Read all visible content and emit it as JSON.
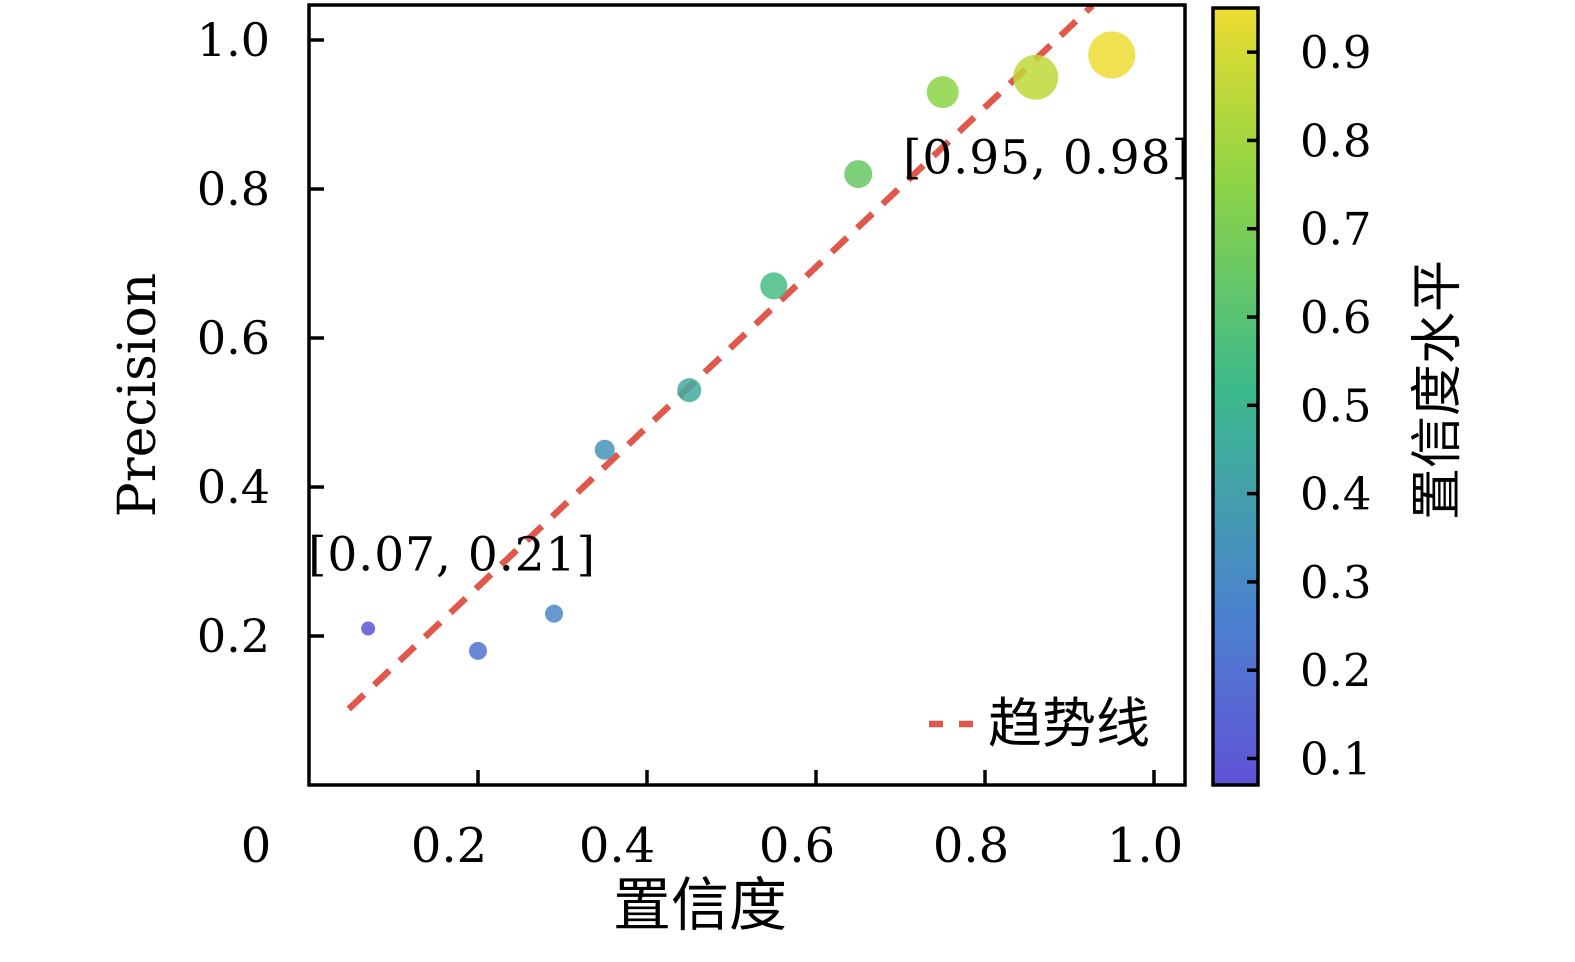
{
  "figure": {
    "background": "#ffffff",
    "text_color": "#000000"
  },
  "chart_data": {
    "type": "scatter",
    "title": "",
    "xlabel": "置信度",
    "ylabel": "Precision",
    "xlim": [
      0,
      1.04
    ],
    "ylim": [
      0,
      1.05
    ],
    "grid": false,
    "x_ticks": [
      {
        "value": 0.0,
        "label": "0"
      },
      {
        "value": 0.2,
        "label": "0.2"
      },
      {
        "value": 0.4,
        "label": "0.4"
      },
      {
        "value": 0.6,
        "label": "0.6"
      },
      {
        "value": 0.8,
        "label": "0.8"
      },
      {
        "value": 1.0,
        "label": "1.0"
      }
    ],
    "y_ticks": [
      {
        "value": 0.2,
        "label": "0.2"
      },
      {
        "value": 0.4,
        "label": "0.4"
      },
      {
        "value": 0.6,
        "label": "0.6"
      },
      {
        "value": 0.8,
        "label": "0.8"
      },
      {
        "value": 1.0,
        "label": "1.0"
      }
    ],
    "points": [
      {
        "x": 0.07,
        "y": 0.21,
        "r": 7,
        "color": "#5e55d6"
      },
      {
        "x": 0.2,
        "y": 0.18,
        "r": 9,
        "color": "#5173d1"
      },
      {
        "x": 0.29,
        "y": 0.23,
        "r": 9,
        "color": "#4988c8"
      },
      {
        "x": 0.35,
        "y": 0.45,
        "r": 10,
        "color": "#4695b8"
      },
      {
        "x": 0.45,
        "y": 0.53,
        "r": 12,
        "color": "#40ab9e"
      },
      {
        "x": 0.55,
        "y": 0.67,
        "r": 13.5,
        "color": "#47bd83"
      },
      {
        "x": 0.65,
        "y": 0.82,
        "r": 14,
        "color": "#69c864"
      },
      {
        "x": 0.75,
        "y": 0.93,
        "r": 16,
        "color": "#8cd346"
      },
      {
        "x": 0.86,
        "y": 0.95,
        "r": 22.5,
        "color": "#c0d839"
      },
      {
        "x": 0.95,
        "y": 0.98,
        "r": 23.5,
        "color": "#ecdc30"
      }
    ],
    "point_opacity": 0.85,
    "trend_line": {
      "label": "趋势线",
      "color": "#e0584b",
      "style": "dashed",
      "x_start": 0.047,
      "y_start": 0.102,
      "x_end": 0.927,
      "y_end": 1.046
    },
    "annotations": [
      {
        "text": "[0.07, 0.21]",
        "x": 0.169,
        "y": 0.309
      },
      {
        "text": "[0.95, 0.98]",
        "x": 0.873,
        "y": 0.842
      }
    ],
    "legend_position": "lower right",
    "colorbar": {
      "label": "置信度水平",
      "vmin": 0.07,
      "vmax": 0.95,
      "ticks": [
        {
          "value": 0.1,
          "label": "0.1"
        },
        {
          "value": 0.2,
          "label": "0.2"
        },
        {
          "value": 0.3,
          "label": "0.3"
        },
        {
          "value": 0.4,
          "label": "0.4"
        },
        {
          "value": 0.5,
          "label": "0.5"
        },
        {
          "value": 0.6,
          "label": "0.6"
        },
        {
          "value": 0.7,
          "label": "0.7"
        },
        {
          "value": 0.8,
          "label": "0.8"
        },
        {
          "value": 0.9,
          "label": "0.9"
        }
      ],
      "gradient_bottom_to_top": [
        {
          "pos": 0.0,
          "color": "#6152d6"
        },
        {
          "pos": 0.22,
          "color": "#4b82cf"
        },
        {
          "pos": 0.51,
          "color": "#3cba8c"
        },
        {
          "pos": 0.78,
          "color": "#8ed444"
        },
        {
          "pos": 1.0,
          "color": "#ecdc30"
        }
      ]
    }
  }
}
